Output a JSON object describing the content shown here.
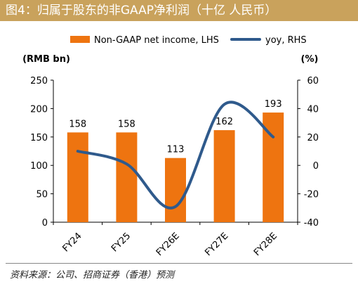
{
  "title": "图4：归属于股东的非GAAP净利润（十亿 人民币）",
  "source": "资料来源：公司、招商证券（香港）预测",
  "colors": {
    "title_bg": "#c9a25c",
    "bar": "#ee7410",
    "line": "#2f5a8c"
  },
  "chart_data": {
    "type": "bar",
    "categories": [
      "FY24",
      "FY25",
      "FY26E",
      "FY27E",
      "FY28E"
    ],
    "series": [
      {
        "name": "Non-GAAP net income, LHS",
        "type": "bar",
        "axis": "left",
        "values": [
          158,
          158,
          113,
          162,
          193
        ]
      },
      {
        "name": "yoy, RHS",
        "type": "line",
        "axis": "right",
        "values": [
          10,
          1,
          -29,
          43,
          20
        ]
      }
    ],
    "data_labels": [
      "158",
      "158",
      "113",
      "162",
      "193"
    ],
    "left_axis": {
      "label": "(RMB bn)",
      "ylim": [
        0,
        250
      ],
      "ticks": [
        "0",
        "50",
        "100",
        "150",
        "200",
        "250"
      ]
    },
    "right_axis": {
      "label": "(%)",
      "ylim": [
        -40,
        60
      ],
      "ticks": [
        "-40",
        "-20",
        "0",
        "20",
        "40",
        "60"
      ]
    },
    "legend_position": "top",
    "grid": false
  }
}
